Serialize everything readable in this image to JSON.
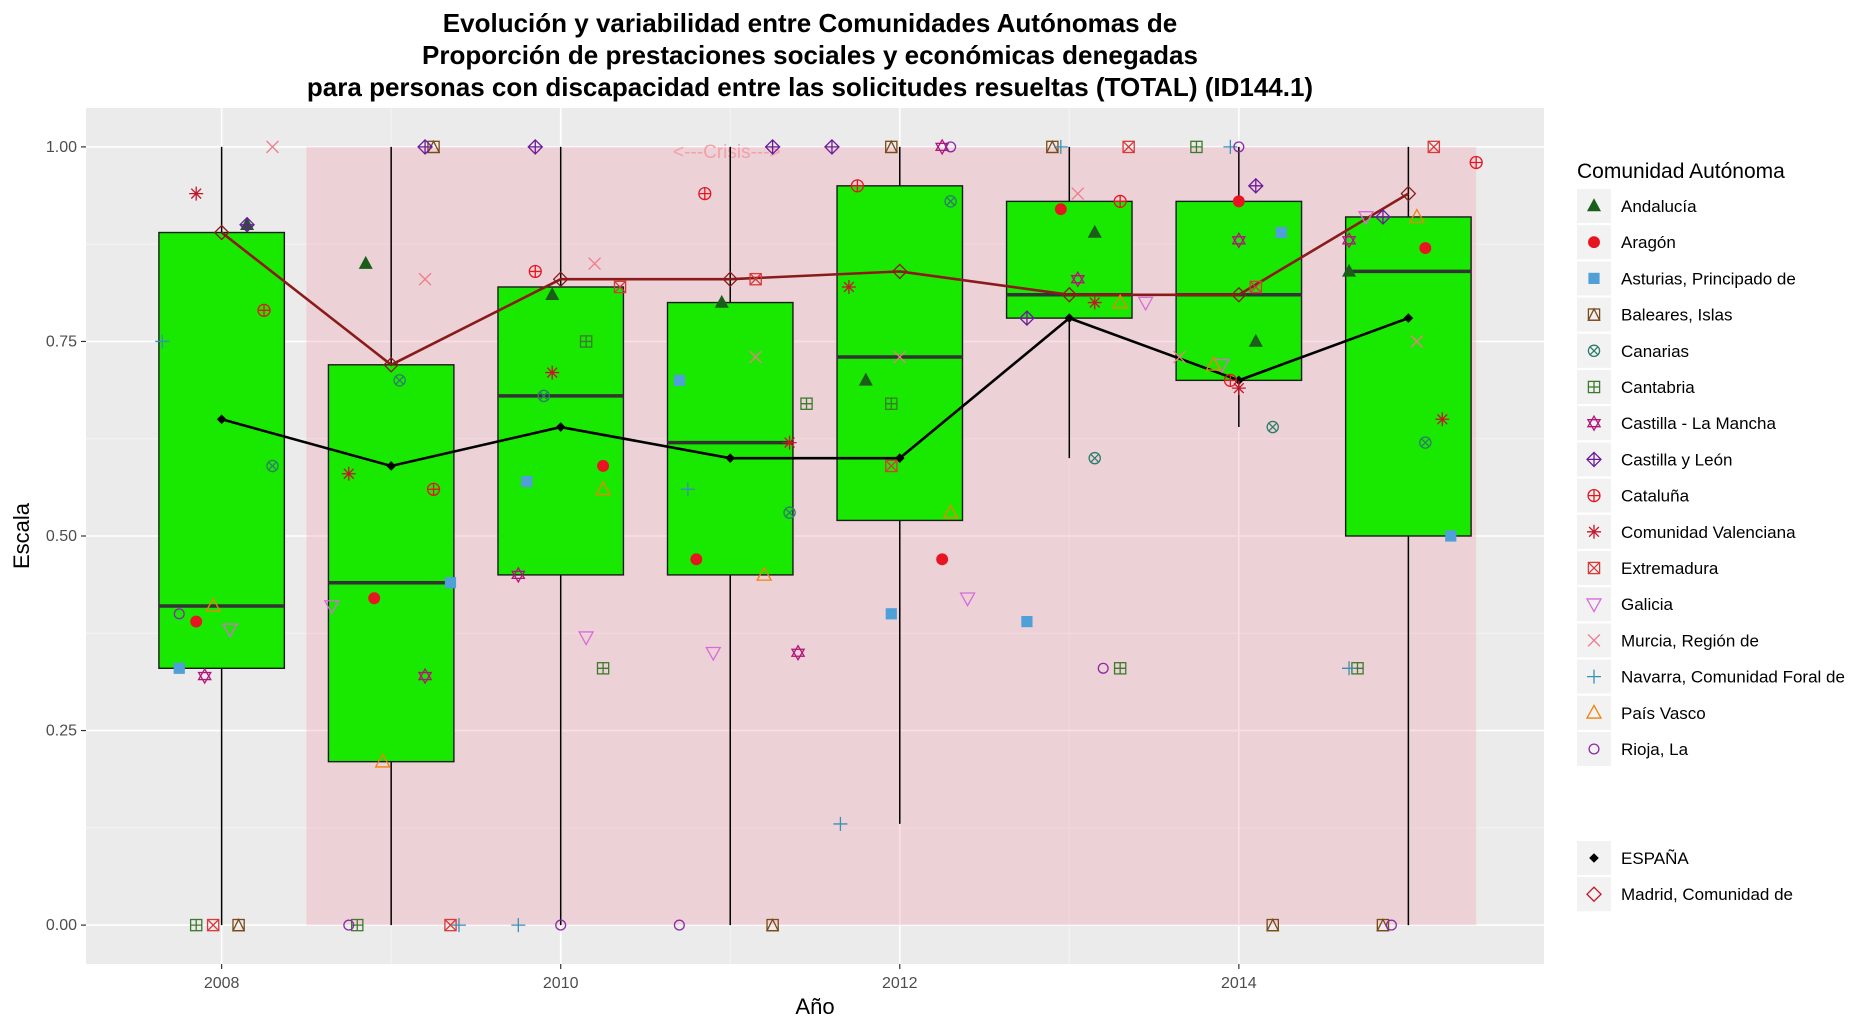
{
  "chart_data": {
    "type": "boxplot",
    "title_lines": [
      "Evolución y variabilidad entre Comunidades Autónomas de",
      "Proporción de prestaciones sociales y económicas denegadas",
      "para personas con discapacidad entre las solicitudes resueltas (TOTAL) (ID144.1)"
    ],
    "xlabel": "Año",
    "ylabel": "Escala",
    "xlim": [
      2007.2,
      2015.8
    ],
    "ylim": [
      -0.05,
      1.05
    ],
    "x_ticks": [
      2008,
      2010,
      2012,
      2014
    ],
    "y_ticks": [
      0,
      0.25,
      0.5,
      0.75,
      1.0
    ],
    "y_tick_labels": [
      "0.00",
      "0.25",
      "0.50",
      "0.75",
      "1.00"
    ],
    "grid": true,
    "crisis_band": {
      "x_start": 2008.5,
      "x_end": 2015.4,
      "label": "<---Crisis--->",
      "label_x": 2010.98,
      "label_y": 0.995
    },
    "boxes": [
      {
        "x": 2008,
        "lower": 0.33,
        "q1": 0.33,
        "median": 0.41,
        "q3": 0.89,
        "upper": 1.0,
        "whisker_low": 0.0
      },
      {
        "x": 2009,
        "q1": 0.21,
        "median": 0.44,
        "q3": 0.72,
        "whisker_high": 1.0,
        "whisker_low": 0.0
      },
      {
        "x": 2010,
        "q1": 0.45,
        "median": 0.68,
        "q3": 0.82,
        "whisker_high": 1.0,
        "whisker_low": 0.0
      },
      {
        "x": 2011,
        "q1": 0.45,
        "median": 0.62,
        "q3": 0.8,
        "whisker_high": 1.0,
        "whisker_low": 0.0
      },
      {
        "x": 2012,
        "q1": 0.52,
        "median": 0.73,
        "q3": 0.95,
        "whisker_high": 1.0,
        "whisker_low": 0.13
      },
      {
        "x": 2013,
        "q1": 0.78,
        "median": 0.81,
        "q3": 0.93,
        "whisker_high": 1.0,
        "whisker_low": 0.6
      },
      {
        "x": 2014,
        "q1": 0.7,
        "median": 0.81,
        "q3": 0.93,
        "whisker_high": 1.0,
        "whisker_low": 0.64
      },
      {
        "x": 2015,
        "q1": 0.5,
        "median": 0.84,
        "q3": 0.91,
        "whisker_high": 1.0,
        "whisker_low": 0.0
      }
    ],
    "lines": [
      {
        "name": "ESPAÑA",
        "color": "#000000",
        "marker": "diamond-filled",
        "x": [
          2008,
          2009,
          2010,
          2011,
          2012,
          2013,
          2014,
          2015
        ],
        "y": [
          0.65,
          0.59,
          0.64,
          0.6,
          0.6,
          0.78,
          0.7,
          0.78
        ]
      },
      {
        "name": "Madrid, Comunidad de",
        "color": "#8b1a1a",
        "marker": "diamond-open",
        "x": [
          2008,
          2009,
          2010,
          2011,
          2012,
          2013,
          2014,
          2015
        ],
        "y": [
          0.89,
          0.72,
          0.83,
          0.83,
          0.84,
          0.81,
          0.81,
          0.94
        ]
      }
    ],
    "legend": {
      "title": "Comunidad Autónoma",
      "placement": "right",
      "entries": [
        {
          "name": "Andalucía",
          "shape": "triangle-filled",
          "color": "#1a5e1a"
        },
        {
          "name": "Aragón",
          "shape": "circle-filled",
          "color": "#e8141f"
        },
        {
          "name": "Asturias, Principado de",
          "shape": "square-filled",
          "color": "#4f9fd8"
        },
        {
          "name": "Baleares, Islas",
          "shape": "square-triangle",
          "color": "#7a4a1a"
        },
        {
          "name": "Canarias",
          "shape": "circle-x",
          "color": "#2e7d6b"
        },
        {
          "name": "Cantabria",
          "shape": "square-plus",
          "color": "#3d7a2e"
        },
        {
          "name": "Castilla - La Mancha",
          "shape": "star-of-david",
          "color": "#b0157a"
        },
        {
          "name": "Castilla y León",
          "shape": "diamond-plus",
          "color": "#6a1a9a"
        },
        {
          "name": "Cataluña",
          "shape": "circle-plus",
          "color": "#e8141f"
        },
        {
          "name": "Comunidad Valenciana",
          "shape": "asterisk",
          "color": "#c4162a"
        },
        {
          "name": "Extremadura",
          "shape": "square-x",
          "color": "#d63a3a"
        },
        {
          "name": "Galicia",
          "shape": "triangle-down-open",
          "color": "#d96ad9"
        },
        {
          "name": "Murcia, Región de",
          "shape": "x",
          "color": "#f07a8a"
        },
        {
          "name": "Navarra, Comunidad Foral de",
          "shape": "plus",
          "color": "#3a8fb8"
        },
        {
          "name": "País Vasco",
          "shape": "triangle-open",
          "color": "#f0820a"
        },
        {
          "name": "Rioja, La",
          "shape": "circle-open",
          "color": "#8a2aa8"
        }
      ],
      "line_entries": [
        {
          "name": "ESPAÑA",
          "shape": "diamond-filled",
          "color": "#000000"
        },
        {
          "name": "Madrid, Comunidad de",
          "shape": "diamond-open",
          "color": "#c4162a"
        }
      ]
    },
    "points": [
      {
        "region": "Andalucía",
        "data": [
          [
            2008.15,
            0.9
          ],
          [
            2008.85,
            0.85
          ],
          [
            2009.95,
            0.81
          ],
          [
            2010.95,
            0.8
          ],
          [
            2011.8,
            0.7
          ],
          [
            2013.15,
            0.89
          ],
          [
            2014.1,
            0.75
          ],
          [
            2014.65,
            0.84
          ]
        ]
      },
      {
        "region": "Aragón",
        "data": [
          [
            2007.85,
            0.39
          ],
          [
            2008.9,
            0.42
          ],
          [
            2010.25,
            0.59
          ],
          [
            2010.8,
            0.47
          ],
          [
            2012.25,
            0.47
          ],
          [
            2012.95,
            0.92
          ],
          [
            2014.0,
            0.93
          ],
          [
            2015.1,
            0.87
          ]
        ]
      },
      {
        "region": "Asturias, Principado de",
        "data": [
          [
            2007.75,
            0.33
          ],
          [
            2009.35,
            0.44
          ],
          [
            2009.8,
            0.57
          ],
          [
            2010.7,
            0.7
          ],
          [
            2011.95,
            0.4
          ],
          [
            2012.75,
            0.39
          ],
          [
            2014.25,
            0.89
          ],
          [
            2015.25,
            0.5
          ]
        ]
      },
      {
        "region": "Baleares, Islas",
        "data": [
          [
            2008.1,
            0.0
          ],
          [
            2009.25,
            1.0
          ],
          [
            2011.25,
            0.0
          ],
          [
            2011.95,
            1.0
          ],
          [
            2012.9,
            1.0
          ],
          [
            2014.2,
            0.0
          ],
          [
            2014.85,
            0.0
          ]
        ]
      },
      {
        "region": "Canarias",
        "data": [
          [
            2008.3,
            0.59
          ],
          [
            2009.05,
            0.7
          ],
          [
            2009.9,
            0.68
          ],
          [
            2011.35,
            0.53
          ],
          [
            2012.3,
            0.93
          ],
          [
            2013.15,
            0.6
          ],
          [
            2014.2,
            0.64
          ],
          [
            2015.1,
            0.62
          ]
        ]
      },
      {
        "region": "Cantabria",
        "data": [
          [
            2007.85,
            0.0
          ],
          [
            2008.8,
            0.0
          ],
          [
            2010.15,
            0.75
          ],
          [
            2010.25,
            0.33
          ],
          [
            2011.45,
            0.67
          ],
          [
            2011.95,
            0.67
          ],
          [
            2013.3,
            0.33
          ],
          [
            2013.75,
            1.0
          ],
          [
            2014.7,
            0.33
          ]
        ]
      },
      {
        "region": "Castilla - La Mancha",
        "data": [
          [
            2007.9,
            0.32
          ],
          [
            2009.2,
            0.32
          ],
          [
            2009.75,
            0.45
          ],
          [
            2011.4,
            0.35
          ],
          [
            2012.25,
            1.0
          ],
          [
            2013.05,
            0.83
          ],
          [
            2014.0,
            0.88
          ],
          [
            2014.65,
            0.88
          ]
        ]
      },
      {
        "region": "Castilla y León",
        "data": [
          [
            2008.15,
            0.9
          ],
          [
            2009.2,
            1.0
          ],
          [
            2009.85,
            1.0
          ],
          [
            2011.25,
            1.0
          ],
          [
            2011.6,
            1.0
          ],
          [
            2012.75,
            0.78
          ],
          [
            2014.1,
            0.95
          ],
          [
            2014.85,
            0.91
          ]
        ]
      },
      {
        "region": "Cataluña",
        "data": [
          [
            2008.25,
            0.79
          ],
          [
            2009.25,
            0.56
          ],
          [
            2009.85,
            0.84
          ],
          [
            2010.85,
            0.94
          ],
          [
            2011.75,
            0.95
          ],
          [
            2013.3,
            0.93
          ],
          [
            2013.95,
            0.7
          ],
          [
            2015.4,
            0.98
          ]
        ]
      },
      {
        "region": "Comunidad Valenciana",
        "data": [
          [
            2007.85,
            0.94
          ],
          [
            2008.75,
            0.58
          ],
          [
            2009.95,
            0.71
          ],
          [
            2011.35,
            0.62
          ],
          [
            2011.7,
            0.82
          ],
          [
            2013.15,
            0.8
          ],
          [
            2014.0,
            0.69
          ],
          [
            2015.2,
            0.65
          ]
        ]
      },
      {
        "region": "Extremadura",
        "data": [
          [
            2007.95,
            0.0
          ],
          [
            2009.35,
            0.0
          ],
          [
            2010.35,
            0.82
          ],
          [
            2011.15,
            0.83
          ],
          [
            2011.95,
            0.59
          ],
          [
            2013.35,
            1.0
          ],
          [
            2014.1,
            0.82
          ],
          [
            2015.15,
            1.0
          ]
        ]
      },
      {
        "region": "Galicia",
        "data": [
          [
            2008.05,
            0.38
          ],
          [
            2008.65,
            0.41
          ],
          [
            2010.15,
            0.37
          ],
          [
            2010.9,
            0.35
          ],
          [
            2012.4,
            0.42
          ],
          [
            2013.45,
            0.8
          ],
          [
            2013.9,
            0.72
          ],
          [
            2014.75,
            0.91
          ]
        ]
      },
      {
        "region": "Murcia, Región de",
        "data": [
          [
            2008.3,
            1.0
          ],
          [
            2009.2,
            0.83
          ],
          [
            2010.2,
            0.85
          ],
          [
            2011.15,
            0.73
          ],
          [
            2012.0,
            0.73
          ],
          [
            2013.05,
            0.94
          ],
          [
            2013.65,
            0.73
          ],
          [
            2015.05,
            0.75
          ]
        ]
      },
      {
        "region": "Navarra, Comunidad Foral de",
        "data": [
          [
            2007.65,
            0.75
          ],
          [
            2009.4,
            0.0
          ],
          [
            2009.75,
            0.0
          ],
          [
            2010.75,
            0.56
          ],
          [
            2011.65,
            0.13
          ],
          [
            2012.95,
            1.0
          ],
          [
            2013.95,
            1.0
          ],
          [
            2014.65,
            0.33
          ]
        ]
      },
      {
        "region": "País Vasco",
        "data": [
          [
            2007.95,
            0.41
          ],
          [
            2008.95,
            0.21
          ],
          [
            2010.25,
            0.56
          ],
          [
            2011.2,
            0.45
          ],
          [
            2012.3,
            0.53
          ],
          [
            2013.3,
            0.8
          ],
          [
            2013.85,
            0.72
          ],
          [
            2015.05,
            0.91
          ]
        ]
      },
      {
        "region": "Rioja, La",
        "data": [
          [
            2007.75,
            0.4
          ],
          [
            2008.75,
            0.0
          ],
          [
            2010.0,
            0.0
          ],
          [
            2010.7,
            0.0
          ],
          [
            2012.3,
            1.0
          ],
          [
            2013.2,
            0.33
          ],
          [
            2014.0,
            1.0
          ],
          [
            2014.9,
            0.0
          ]
        ]
      }
    ]
  }
}
